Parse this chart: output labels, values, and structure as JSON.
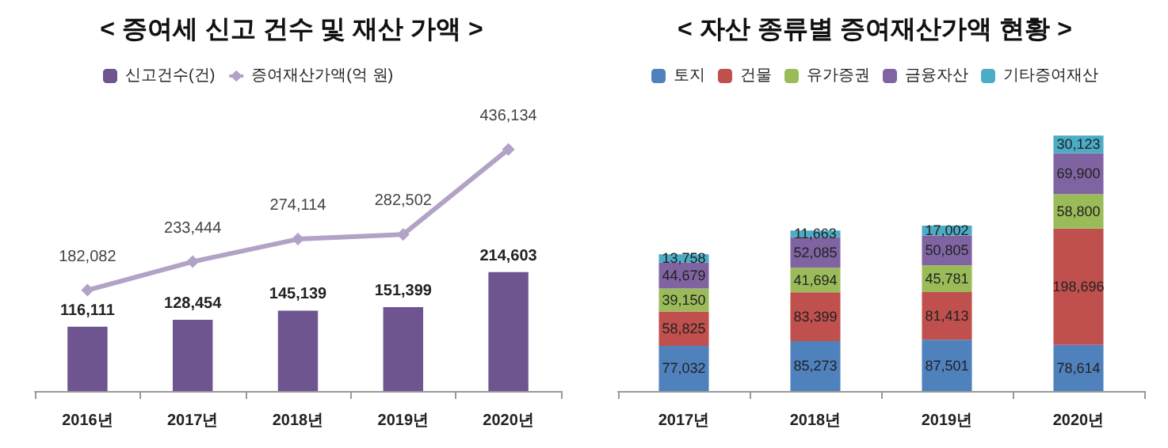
{
  "chart_data": [
    {
      "type": "bar",
      "title": "< 증여세 신고 건수 및 재산 가액 >",
      "categories": [
        "2016년",
        "2017년",
        "2018년",
        "2019년",
        "2020년"
      ],
      "tick_labels": "x",
      "legend": "top left",
      "marker": "diamond",
      "line_style": "solid",
      "series": [
        {
          "name": "신고건수(건)",
          "color": "#6f5590",
          "values": [
            116111,
            128454,
            145139,
            151399,
            214603
          ],
          "value_labels": [
            "116,111",
            "128,454",
            "145,139",
            "151,399",
            "214,603"
          ]
        },
        {
          "name": "증여재산가액(억 원)",
          "type": "line",
          "color": "#b3a2c7",
          "values": [
            182082,
            233444,
            274114,
            282502,
            436134
          ],
          "value_labels": [
            "182,082",
            "233,444",
            "274,114",
            "282,502",
            "436,134"
          ]
        }
      ]
    },
    {
      "type": "bar",
      "title": "< 자산 종류별 증여재산가액 현황 >",
      "categories": [
        "2017년",
        "2018년",
        "2019년",
        "2020년"
      ],
      "tick_labels": "x",
      "legend": "top",
      "stacked": true,
      "series": [
        {
          "name": "토지",
          "color": "#4f81bd",
          "values": [
            77032,
            85273,
            87501,
            78614
          ],
          "value_labels": [
            "77,032",
            "85,273",
            "87,501",
            "78,614"
          ]
        },
        {
          "name": "건물",
          "color": "#c0504d",
          "values": [
            58825,
            83399,
            81413,
            198696
          ],
          "value_labels": [
            "58,825",
            "83,399",
            "81,413",
            "198,696"
          ]
        },
        {
          "name": "유가증권",
          "color": "#9bbb59",
          "values": [
            39150,
            41694,
            45781,
            58800
          ],
          "value_labels": [
            "39,150",
            "41,694",
            "45,781",
            "58,800"
          ]
        },
        {
          "name": "금융자산",
          "color": "#8064a2",
          "values": [
            44679,
            52085,
            50805,
            69900
          ],
          "value_labels": [
            "44,679",
            "52,085",
            "50,805",
            "69,900"
          ]
        },
        {
          "name": "기타증여재산",
          "color": "#4bacc6",
          "values": [
            13758,
            11663,
            17002,
            30123
          ],
          "value_labels": [
            "13,758",
            "11,663",
            "17,002",
            "30,123"
          ]
        }
      ]
    }
  ]
}
